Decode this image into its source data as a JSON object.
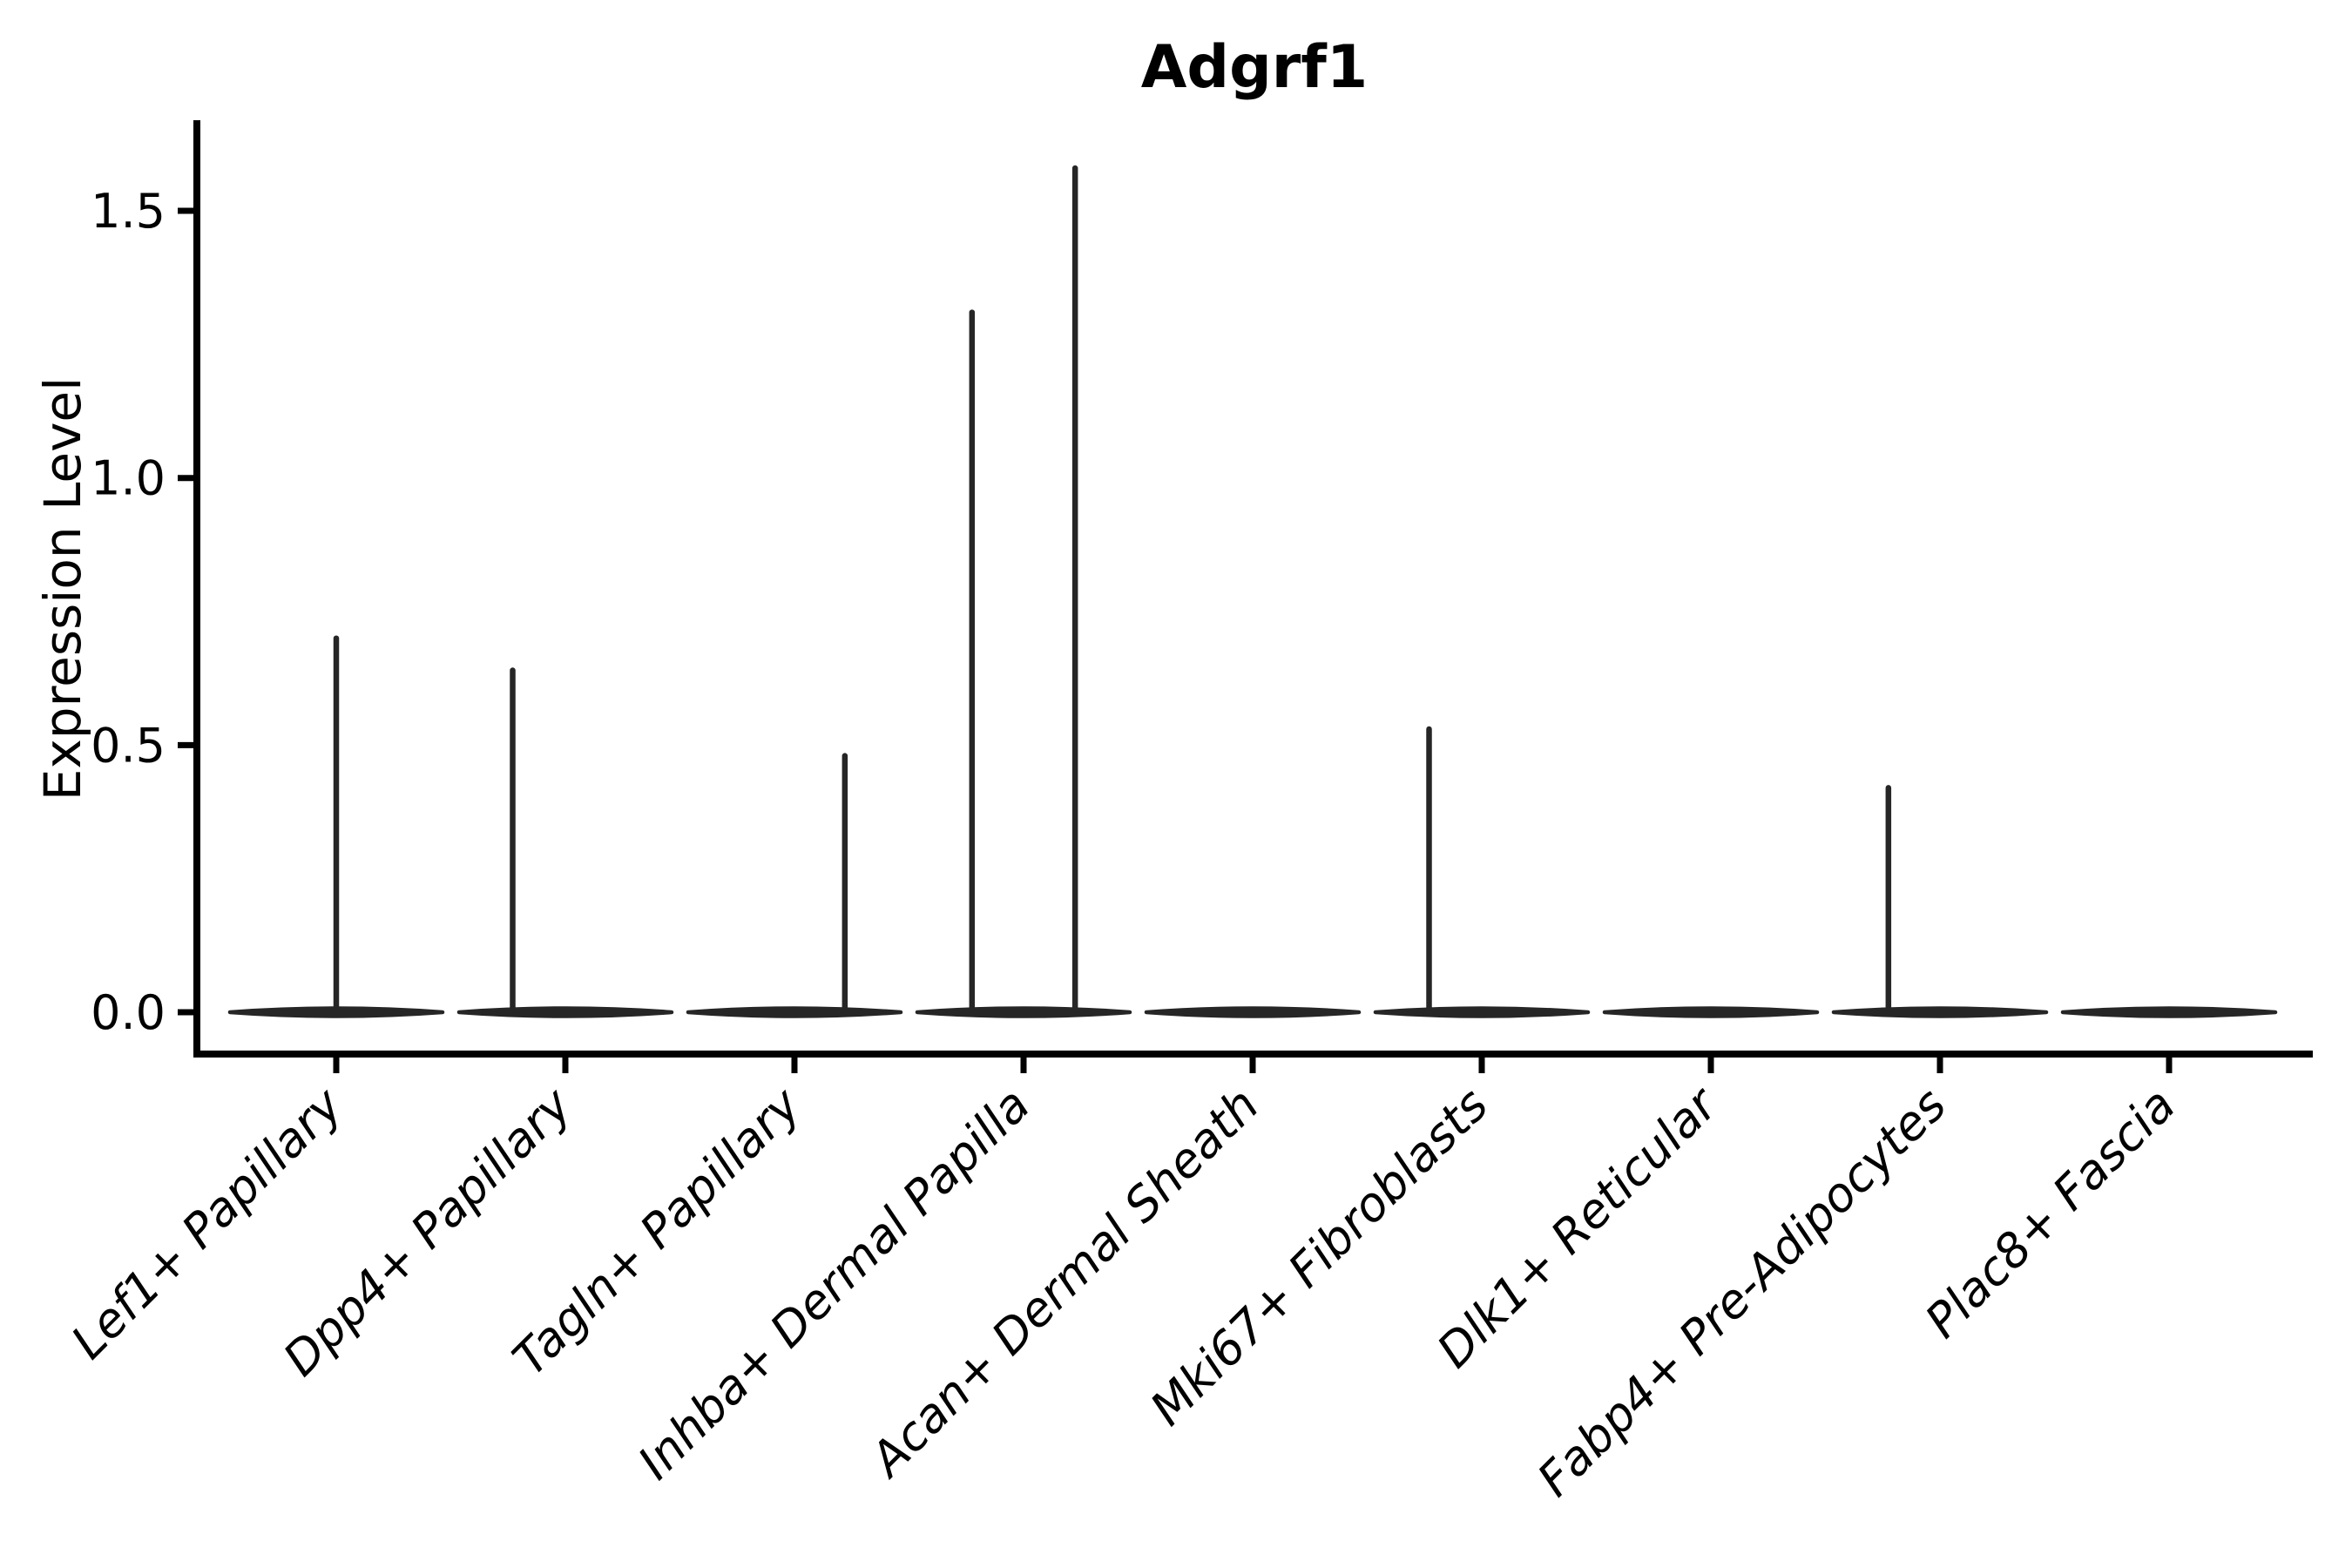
{
  "figure": {
    "title": "Adgrf1",
    "background": "#ffffff"
  },
  "chart_data": {
    "type": "violin",
    "title": "Adgrf1",
    "xlabel": "",
    "ylabel": "Expression Level",
    "categories": [
      "Lef1+ Papillary",
      "Dpp4+ Papillary",
      "Tagln+ Papillary",
      "Inhba+ Dermal Papilla",
      "Acan+ Dermal Sheath",
      "Mki67+ Fibroblasts",
      "Dlk1+ Reticular",
      "Fabp4+ Pre-Adipocytes",
      "Plac8+ Fascia"
    ],
    "category_slugs": [
      "lef1-papillary",
      "dpp4-papillary",
      "tagln-papillary",
      "inhba-dermal-papilla",
      "acan-dermal-sheath",
      "mki67-fibroblasts",
      "dlk1-reticular",
      "fabp4-pre-adipocytes",
      "plac8-fascia"
    ],
    "yticks": [
      0.0,
      0.5,
      1.0,
      1.5
    ],
    "ytick_labels": [
      "0.0",
      "0.5",
      "1.0",
      "1.5"
    ],
    "ylim": [
      -0.075,
      1.67
    ],
    "grid": false,
    "legend_position": "none",
    "xtick_label_rotation_deg": 45,
    "xtick_label_style": "italic",
    "violins": [
      {
        "category": "Lef1+ Papillary",
        "base_value": 0.0,
        "spikes": [
          {
            "offset": 0.0,
            "max": 0.7
          }
        ]
      },
      {
        "category": "Dpp4+ Papillary",
        "base_value": 0.0,
        "spikes": [
          {
            "offset": -0.23,
            "max": 0.64
          }
        ]
      },
      {
        "category": "Tagln+ Papillary",
        "base_value": 0.0,
        "spikes": [
          {
            "offset": 0.22,
            "max": 0.48
          }
        ]
      },
      {
        "category": "Inhba+ Dermal Papilla",
        "base_value": 0.0,
        "spikes": [
          {
            "offset": -0.225,
            "max": 1.31
          },
          {
            "offset": 0.225,
            "max": 1.58
          }
        ]
      },
      {
        "category": "Acan+ Dermal Sheath",
        "base_value": 0.0,
        "spikes": []
      },
      {
        "category": "Mki67+ Fibroblasts",
        "base_value": 0.0,
        "spikes": [
          {
            "offset": -0.23,
            "max": 0.53
          }
        ]
      },
      {
        "category": "Dlk1+ Reticular",
        "base_value": 0.0,
        "spikes": []
      },
      {
        "category": "Fabp4+ Pre-Adipocytes",
        "base_value": 0.0,
        "spikes": [
          {
            "offset": -0.225,
            "max": 0.42
          }
        ]
      },
      {
        "category": "Plac8+ Fascia",
        "base_value": 0.0,
        "spikes": []
      }
    ],
    "colors": {
      "violin": "#262626",
      "axis": "#000000",
      "text": "#000000",
      "background": "#ffffff"
    }
  }
}
